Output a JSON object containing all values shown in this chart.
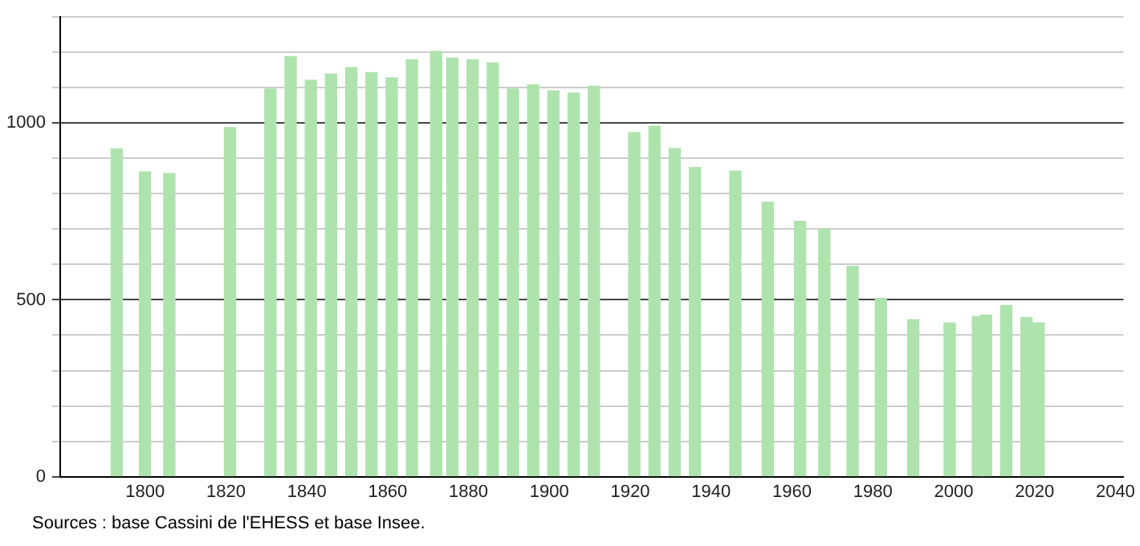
{
  "chart_data": {
    "type": "bar",
    "x": [
      1793,
      1800,
      1806,
      1821,
      1831,
      1836,
      1841,
      1846,
      1851,
      1856,
      1861,
      1866,
      1872,
      1876,
      1881,
      1886,
      1891,
      1896,
      1901,
      1906,
      1911,
      1921,
      1926,
      1931,
      1936,
      1946,
      1954,
      1962,
      1968,
      1975,
      1982,
      1990,
      1999,
      2006,
      2008,
      2013,
      2018,
      2021
    ],
    "values": [
      927,
      862,
      857,
      987,
      1096,
      1188,
      1121,
      1139,
      1157,
      1143,
      1128,
      1179,
      1203,
      1184,
      1179,
      1170,
      1096,
      1108,
      1091,
      1085,
      1104,
      973,
      991,
      928,
      874,
      864,
      776,
      722,
      700,
      595,
      504,
      444,
      435,
      453,
      457,
      484,
      450,
      435
    ],
    "color": "#aee3ae",
    "xlim": [
      1779,
      2042
    ],
    "xticks": [
      1800,
      1820,
      1840,
      1860,
      1880,
      1900,
      1920,
      1940,
      1960,
      1980,
      2000,
      2020,
      2040
    ],
    "ylim": [
      0,
      1300
    ],
    "yticks": [
      0,
      {
        "value": 100,
        "label": null
      },
      {
        "value": 200,
        "label": null
      },
      {
        "value": 300,
        "label": null
      },
      {
        "value": 400,
        "label": null
      },
      500,
      {
        "value": 600,
        "label": null
      },
      {
        "value": 700,
        "label": null
      },
      {
        "value": 800,
        "label": null
      },
      {
        "value": 900,
        "label": null
      },
      1000,
      {
        "value": 1100,
        "label": null
      },
      {
        "value": 1200,
        "label": null
      },
      {
        "value": 1300,
        "label": null
      }
    ],
    "grid": "y",
    "annotations": [
      "Sources : base Cassini de l'EHESS et base Insee."
    ]
  }
}
